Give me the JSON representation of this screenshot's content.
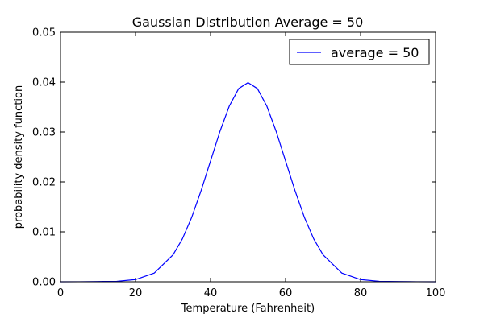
{
  "chart_data": {
    "type": "line",
    "title": "Gaussian Distribution Average = 50",
    "xlabel": "Temperature (Fahrenheit)",
    "ylabel": "probability density function",
    "xlim": [
      0,
      100
    ],
    "ylim": [
      0,
      0.05
    ],
    "x_ticks": [
      0,
      20,
      40,
      60,
      80,
      100
    ],
    "x_tick_labels": [
      "0",
      "20",
      "40",
      "60",
      "80",
      "100"
    ],
    "y_ticks": [
      0,
      0.01,
      0.02,
      0.03,
      0.04,
      0.05
    ],
    "y_tick_labels": [
      "0.00",
      "0.01",
      "0.02",
      "0.03",
      "0.04",
      "0.05"
    ],
    "grid": false,
    "legend_position": "top-right",
    "series": [
      {
        "name": "average = 50",
        "color": "#0000ff",
        "x": [
          0,
          5,
          10,
          15,
          20,
          25,
          30,
          32.5,
          35,
          37.5,
          40,
          42.5,
          45,
          47.5,
          50,
          52.5,
          55,
          57.5,
          60,
          62.5,
          65,
          67.5,
          70,
          75,
          80,
          85,
          90,
          95,
          100
        ],
        "y": [
          1.5e-06,
          6.1e-06,
          5.35e-05,
          8.7e-05,
          0.00044,
          0.00175,
          0.0054,
          0.0086,
          0.01295,
          0.0183,
          0.0242,
          0.0301,
          0.0352,
          0.0387,
          0.0399,
          0.0387,
          0.0352,
          0.0301,
          0.0242,
          0.0183,
          0.01295,
          0.0086,
          0.0054,
          0.00175,
          0.00044,
          8.7e-05,
          5.35e-05,
          6.1e-06,
          1.5e-06
        ]
      }
    ]
  }
}
